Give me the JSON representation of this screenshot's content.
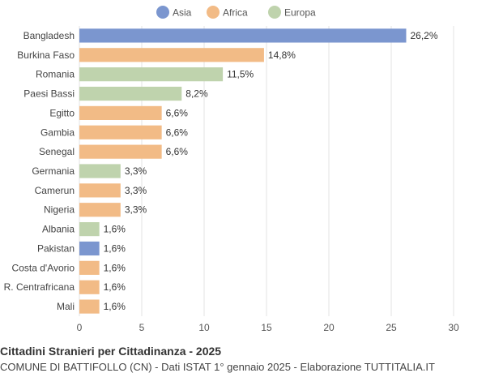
{
  "chart_data": {
    "type": "bar",
    "orientation": "horizontal",
    "title": "Cittadini Stranieri per Cittadinanza - 2025",
    "subtitle": "COMUNE DI BATTIFOLLO (CN) - Dati ISTAT 1° gennaio 2025 - Elaborazione TUTTITALIA.IT",
    "xlabel": "",
    "ylabel": "",
    "xlim": [
      0,
      30
    ],
    "xticks": [
      0,
      5,
      10,
      15,
      20,
      25,
      30
    ],
    "grid": true,
    "legend_position": "top-center",
    "legend": [
      {
        "name": "Asia",
        "color": "#7b96cf"
      },
      {
        "name": "Africa",
        "color": "#f2bb86"
      },
      {
        "name": "Europa",
        "color": "#bfd3ad"
      }
    ],
    "categories": [
      "Bangladesh",
      "Burkina Faso",
      "Romania",
      "Paesi Bassi",
      "Egitto",
      "Gambia",
      "Senegal",
      "Germania",
      "Camerun",
      "Nigeria",
      "Albania",
      "Pakistan",
      "Costa d'Avorio",
      "R. Centrafricana",
      "Mali"
    ],
    "values": [
      26.2,
      14.8,
      11.5,
      8.2,
      6.6,
      6.6,
      6.6,
      3.3,
      3.3,
      3.3,
      1.6,
      1.6,
      1.6,
      1.6,
      1.6
    ],
    "value_labels": [
      "26,2%",
      "14,8%",
      "11,5%",
      "8,2%",
      "6,6%",
      "6,6%",
      "6,6%",
      "3,3%",
      "3,3%",
      "3,3%",
      "1,6%",
      "1,6%",
      "1,6%",
      "1,6%",
      "1,6%"
    ],
    "groups": [
      "Asia",
      "Africa",
      "Europa",
      "Europa",
      "Africa",
      "Africa",
      "Africa",
      "Europa",
      "Africa",
      "Africa",
      "Europa",
      "Asia",
      "Africa",
      "Africa",
      "Africa"
    ]
  }
}
